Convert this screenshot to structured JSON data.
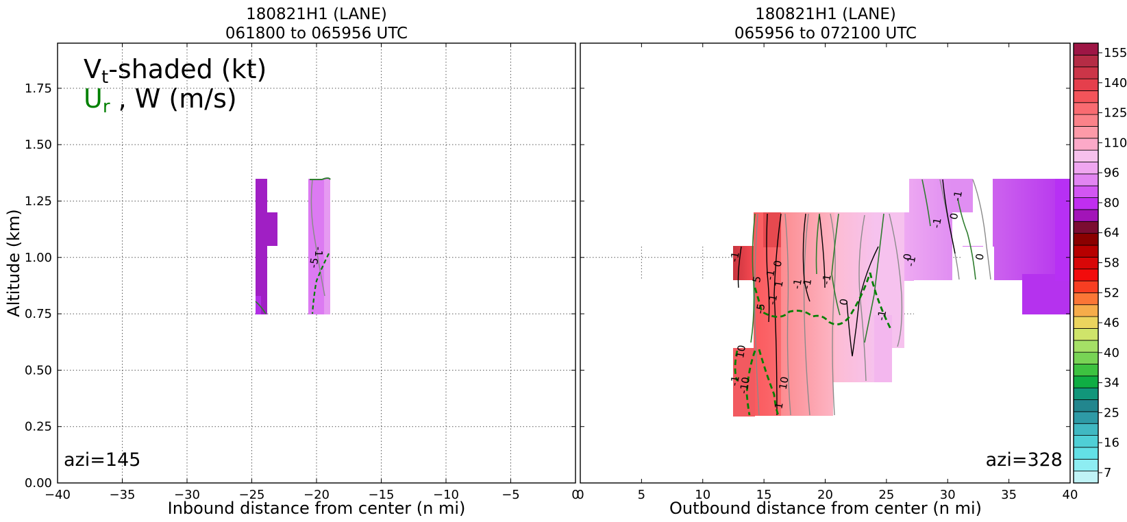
{
  "left_panel": {
    "title_line1": "180821H1 (LANE)",
    "title_line2": "061800 to 065956 UTC",
    "xlabel": "Inbound distance from center (n mi)",
    "ylabel": "Altitude (km)",
    "azimuth": "azi=145",
    "legend_line1_main": "V",
    "legend_line1_sub": "t",
    "legend_line1_rest": "-shaded (kt)",
    "legend_line2_main": "U",
    "legend_line2_sub": "r",
    "legend_line2_rest": " , W (m/s)",
    "legend_ur_color": "#008000"
  },
  "right_panel": {
    "title_line1": "180821H1 (LANE)",
    "title_line2": "065956 to 072100 UTC",
    "xlabel": "Outbound distance from center (n mi)",
    "azimuth": "azi=328"
  },
  "colorbar": {
    "labels": [
      "7",
      "16",
      "25",
      "34",
      "40",
      "46",
      "52",
      "58",
      "64",
      "80",
      "96",
      "110",
      "125",
      "140",
      "155"
    ]
  },
  "chart_data": [
    {
      "type": "heatmap",
      "title": "180821H1 (LANE) 061800 to 065956 UTC",
      "xlabel": "Inbound distance from center (n mi)",
      "ylabel": "Altitude (km)",
      "xlim": [
        -40,
        0
      ],
      "ylim": [
        0,
        1.95
      ],
      "xticks": [
        "−40",
        "−35",
        "−30",
        "−25",
        "−20",
        "−15",
        "−10",
        "−5",
        "0"
      ],
      "yticks": [
        "0.00",
        "0.25",
        "0.50",
        "0.75",
        "1.00",
        "1.25",
        "1.50",
        "1.75"
      ],
      "grid": true,
      "cells": [
        {
          "x": [
            -24.8,
            -23.0
          ],
          "y": [
            0.75,
            1.35
          ],
          "vt_kt": 70
        },
        {
          "x": [
            -20.6,
            -18.9
          ],
          "y": [
            0.75,
            1.35
          ],
          "vt_kt": 85
        }
      ],
      "contour_labels": [
        {
          "x": -20.0,
          "y": 1.0,
          "text": "-1",
          "color": "#000000"
        },
        {
          "x": -19.9,
          "y": 0.92,
          "text": "-5",
          "color": "#008000"
        }
      ]
    },
    {
      "type": "heatmap",
      "title": "180821H1 (LANE) 065956 to 072100 UTC",
      "xlabel": "Outbound distance from center (n mi)",
      "xlim": [
        0,
        40
      ],
      "ylim": [
        0,
        1.95
      ],
      "xticks": [
        "0",
        "5",
        "10",
        "15",
        "20",
        "25",
        "30",
        "35",
        "40"
      ],
      "grid": true,
      "cells": [
        {
          "x": [
            12.5,
            14.3
          ],
          "y": [
            0.3,
            1.05
          ],
          "vt_kt": 135
        },
        {
          "x": [
            14.3,
            17.0
          ],
          "y": [
            0.3,
            1.2
          ],
          "vt_kt": 125
        },
        {
          "x": [
            17.0,
            20.7
          ],
          "y": [
            0.3,
            1.2
          ],
          "vt_kt": 118
        },
        {
          "x": [
            20.7,
            24.0
          ],
          "y": [
            0.55,
            1.2
          ],
          "vt_kt": 105
        },
        {
          "x": [
            24.0,
            26.5
          ],
          "y": [
            0.6,
            1.2
          ],
          "vt_kt": 98
        },
        {
          "x": [
            26.5,
            29.5
          ],
          "y": [
            0.9,
            1.35
          ],
          "vt_kt": 92
        },
        {
          "x": [
            29.5,
            32.0
          ],
          "y": [
            1.2,
            1.35
          ],
          "vt_kt": 90
        },
        {
          "x": [
            31.0,
            34.0
          ],
          "y": [
            0.9,
            1.35
          ],
          "vt_kt": 85
        },
        {
          "x": [
            34.0,
            37.0
          ],
          "y": [
            0.75,
            1.35
          ],
          "vt_kt": 80
        },
        {
          "x": [
            37.0,
            40.0
          ],
          "y": [
            0.9,
            1.35
          ],
          "vt_kt": 78
        }
      ],
      "contour_labels": [
        {
          "x": 12.9,
          "y": 1.0,
          "text": "-1",
          "color": "#000000"
        },
        {
          "x": 13.4,
          "y": 0.58,
          "text": "10",
          "color": "#008000"
        },
        {
          "x": 12.9,
          "y": 0.45,
          "text": "-1",
          "color": "#000000"
        },
        {
          "x": 13.7,
          "y": 0.43,
          "text": "-10",
          "color": "#008000"
        },
        {
          "x": 14.7,
          "y": 0.9,
          "text": "5",
          "color": "#008000"
        },
        {
          "x": 15.0,
          "y": 0.77,
          "text": "-5",
          "color": "#008000"
        },
        {
          "x": 15.8,
          "y": 0.92,
          "text": "-1",
          "color": "#000000"
        },
        {
          "x": 16.4,
          "y": 0.97,
          "text": "0",
          "color": "#008000"
        },
        {
          "x": 16.0,
          "y": 0.81,
          "text": "-1",
          "color": "#000000"
        },
        {
          "x": 16.5,
          "y": 0.88,
          "text": "1",
          "color": "#000000"
        },
        {
          "x": 16.9,
          "y": 0.44,
          "text": "10",
          "color": "#008000"
        },
        {
          "x": 16.5,
          "y": 0.34,
          "text": "1",
          "color": "#000000"
        },
        {
          "x": 18.0,
          "y": 0.88,
          "text": "-1",
          "color": "#000000"
        },
        {
          "x": 18.8,
          "y": 0.88,
          "text": "-1",
          "color": "#000000"
        },
        {
          "x": 20.4,
          "y": 0.9,
          "text": "-1",
          "color": "#000000"
        },
        {
          "x": 21.8,
          "y": 0.8,
          "text": "0",
          "color": "#008000"
        },
        {
          "x": 24.9,
          "y": 0.74,
          "text": "-1",
          "color": "#000000"
        },
        {
          "x": 27.0,
          "y": 1.0,
          "text": "0",
          "color": "#008000"
        },
        {
          "x": 27.3,
          "y": 0.98,
          "text": "-1",
          "color": "#000000"
        },
        {
          "x": 29.4,
          "y": 1.15,
          "text": "-1",
          "color": "#000000"
        },
        {
          "x": 30.8,
          "y": 1.18,
          "text": "0",
          "color": "#008000"
        },
        {
          "x": 31.1,
          "y": 1.27,
          "text": "-1",
          "color": "#000000"
        },
        {
          "x": 32.9,
          "y": 1.0,
          "text": "0",
          "color": "#008000"
        }
      ]
    }
  ]
}
